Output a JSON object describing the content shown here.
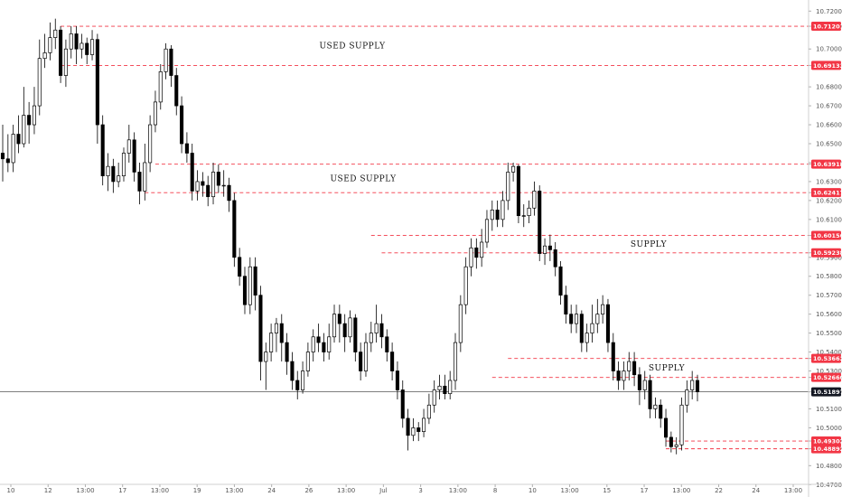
{
  "chart_data": {
    "type": "candlestick",
    "y_range": [
      10.473,
      10.723
    ],
    "y_ticks": [
      "10.72000",
      "10.71201",
      "10.70000",
      "10.69132",
      "10.68000",
      "10.67000",
      "10.66000",
      "10.65000",
      "10.64000",
      "10.63918",
      "10.63000",
      "10.62417",
      "10.62000",
      "10.61000",
      "10.60156",
      "10.59238",
      "10.59000",
      "10.58000",
      "10.57000",
      "10.56000",
      "10.55000",
      "10.54000",
      "10.53662",
      "10.53000",
      "10.52660",
      "10.51897",
      "10.51000",
      "10.50000",
      "10.49302",
      "10.48892",
      "10.48000",
      "10.47000"
    ],
    "x_ticks": [
      "10",
      "12",
      "13:00",
      "17",
      "13:00",
      "19",
      "13:00",
      "24",
      "26",
      "13:00",
      "Jul",
      "3",
      "13:00",
      "8",
      "10",
      "13:00",
      "15",
      "17",
      "13:00",
      "22",
      "24",
      "13:00"
    ],
    "levels": [
      {
        "value": 10.71201,
        "label": "10.71201"
      },
      {
        "value": 10.69132,
        "label": "10.69132"
      },
      {
        "value": 10.63918,
        "label": "10.63918"
      },
      {
        "value": 10.62417,
        "label": "10.62417"
      },
      {
        "value": 10.60156,
        "label": "10.60156"
      },
      {
        "value": 10.59238,
        "label": "10.59238"
      },
      {
        "value": 10.53662,
        "label": "10.53662"
      },
      {
        "value": 10.5266,
        "label": "10.52660"
      },
      {
        "value": 10.49302,
        "label": "10.49302"
      },
      {
        "value": 10.48892,
        "label": "10.48892"
      }
    ],
    "current_price": {
      "value": 10.51897,
      "label": "10.51897"
    },
    "zones": [
      {
        "label": "USED SUPPLY",
        "top": 10.71201,
        "bottom": 10.69132
      },
      {
        "label": "USED SUPPLY",
        "top": 10.63918,
        "bottom": 10.62417
      },
      {
        "label": "SUPPLY",
        "top": 10.60156,
        "bottom": 10.59238
      },
      {
        "label": "SUPPLY",
        "top": 10.53662,
        "bottom": 10.5266
      }
    ],
    "candles": [
      [
        10.645,
        10.642,
        10.66,
        10.63
      ],
      [
        10.642,
        10.64,
        10.655,
        10.635
      ],
      [
        10.64,
        10.655,
        10.66,
        10.635
      ],
      [
        10.655,
        10.65,
        10.665,
        10.645
      ],
      [
        10.65,
        10.665,
        10.68,
        10.648
      ],
      [
        10.665,
        10.66,
        10.672,
        10.65
      ],
      [
        10.66,
        10.67,
        10.68,
        10.655
      ],
      [
        10.67,
        10.695,
        10.705,
        10.665
      ],
      [
        10.695,
        10.698,
        10.708,
        10.69
      ],
      [
        10.698,
        10.706,
        10.714,
        10.694
      ],
      [
        10.706,
        10.71,
        10.716,
        10.7
      ],
      [
        10.71,
        10.686,
        10.712,
        10.682
      ],
      [
        10.686,
        10.7,
        10.705,
        10.68
      ],
      [
        10.7,
        10.708,
        10.712,
        10.695
      ],
      [
        10.708,
        10.7,
        10.712,
        10.692
      ],
      [
        10.7,
        10.703,
        10.708,
        10.695
      ],
      [
        10.703,
        10.697,
        10.706,
        10.692
      ],
      [
        10.697,
        10.705,
        10.71,
        10.694
      ],
      [
        10.705,
        10.66,
        10.708,
        10.65
      ],
      [
        10.66,
        10.633,
        10.665,
        10.628
      ],
      [
        10.633,
        10.638,
        10.645,
        10.625
      ],
      [
        10.638,
        10.63,
        10.642,
        10.624
      ],
      [
        10.63,
        10.633,
        10.64,
        10.627
      ],
      [
        10.633,
        10.645,
        10.648,
        10.63
      ],
      [
        10.645,
        10.652,
        10.66,
        10.64
      ],
      [
        10.652,
        10.635,
        10.656,
        10.63
      ],
      [
        10.635,
        10.625,
        10.64,
        10.618
      ],
      [
        10.625,
        10.64,
        10.65,
        10.62
      ],
      [
        10.64,
        10.66,
        10.665,
        10.635
      ],
      [
        10.66,
        10.672,
        10.678,
        10.656
      ],
      [
        10.672,
        10.688,
        10.692,
        10.668
      ],
      [
        10.688,
        10.7,
        10.703,
        10.684
      ],
      [
        10.7,
        10.686,
        10.702,
        10.68
      ],
      [
        10.686,
        10.67,
        10.69,
        10.665
      ],
      [
        10.67,
        10.65,
        10.675,
        10.645
      ],
      [
        10.65,
        10.645,
        10.656,
        10.64
      ],
      [
        10.645,
        10.625,
        10.65,
        10.62
      ],
      [
        10.625,
        10.63,
        10.636,
        10.62
      ],
      [
        10.63,
        10.628,
        10.635,
        10.622
      ],
      [
        10.628,
        10.622,
        10.633,
        10.617
      ],
      [
        10.622,
        10.635,
        10.64,
        10.618
      ],
      [
        10.635,
        10.628,
        10.639,
        10.624
      ],
      [
        10.628,
        10.628,
        10.636,
        10.622
      ],
      [
        10.628,
        10.62,
        10.632,
        10.614
      ],
      [
        10.62,
        10.59,
        10.624,
        10.585
      ],
      [
        10.59,
        10.58,
        10.595,
        10.575
      ],
      [
        10.58,
        10.565,
        10.585,
        10.56
      ],
      [
        10.565,
        10.585,
        10.59,
        10.56
      ],
      [
        10.585,
        10.57,
        10.59,
        10.562
      ],
      [
        10.57,
        10.535,
        10.575,
        10.525
      ],
      [
        10.535,
        10.54,
        10.545,
        10.52
      ],
      [
        10.54,
        10.55,
        10.555,
        10.535
      ],
      [
        10.55,
        10.555,
        10.558,
        10.54
      ],
      [
        10.555,
        10.545,
        10.56,
        10.535
      ],
      [
        10.545,
        10.535,
        10.55,
        10.528
      ],
      [
        10.535,
        10.525,
        10.54,
        10.52
      ],
      [
        10.525,
        10.52,
        10.53,
        10.515
      ],
      [
        10.52,
        10.53,
        10.535,
        10.518
      ],
      [
        10.53,
        10.54,
        10.545,
        10.527
      ],
      [
        10.54,
        10.548,
        10.552,
        10.535
      ],
      [
        10.548,
        10.545,
        10.555,
        10.54
      ],
      [
        10.545,
        10.54,
        10.55,
        10.535
      ],
      [
        10.54,
        10.548,
        10.555,
        10.536
      ],
      [
        10.548,
        10.56,
        10.565,
        10.545
      ],
      [
        10.56,
        10.555,
        10.565,
        10.545
      ],
      [
        10.555,
        10.548,
        10.56,
        10.54
      ],
      [
        10.548,
        10.558,
        10.562,
        10.545
      ],
      [
        10.558,
        10.54,
        10.56,
        10.535
      ],
      [
        10.54,
        10.53,
        10.545,
        10.525
      ],
      [
        10.53,
        10.545,
        10.55,
        10.527
      ],
      [
        10.545,
        10.55,
        10.556,
        10.54
      ],
      [
        10.55,
        10.555,
        10.565,
        10.545
      ],
      [
        10.555,
        10.548,
        10.56,
        10.542
      ],
      [
        10.548,
        10.54,
        10.552,
        10.535
      ],
      [
        10.54,
        10.53,
        10.545,
        10.525
      ],
      [
        10.53,
        10.52,
        10.535,
        10.515
      ],
      [
        10.52,
        10.505,
        10.525,
        10.5
      ],
      [
        10.505,
        10.496,
        10.51,
        10.488
      ],
      [
        10.496,
        10.5,
        10.505,
        10.493
      ],
      [
        10.5,
        10.498,
        10.503,
        10.493
      ],
      [
        10.498,
        10.505,
        10.51,
        10.495
      ],
      [
        10.505,
        10.512,
        10.518,
        10.502
      ],
      [
        10.512,
        10.52,
        10.525,
        10.508
      ],
      [
        10.52,
        10.522,
        10.528,
        10.515
      ],
      [
        10.522,
        10.518,
        10.528,
        10.515
      ],
      [
        10.518,
        10.525,
        10.53,
        10.515
      ],
      [
        10.525,
        10.545,
        10.55,
        10.52
      ],
      [
        10.545,
        10.565,
        10.57,
        10.54
      ],
      [
        10.565,
        10.585,
        10.59,
        10.56
      ],
      [
        10.585,
        10.595,
        10.6,
        10.58
      ],
      [
        10.595,
        10.59,
        10.6,
        10.584
      ],
      [
        10.59,
        10.598,
        10.605,
        10.585
      ],
      [
        10.598,
        10.61,
        10.615,
        10.595
      ],
      [
        10.61,
        10.615,
        10.62,
        10.604
      ],
      [
        10.615,
        10.61,
        10.62,
        10.606
      ],
      [
        10.61,
        10.62,
        10.625,
        10.606
      ],
      [
        10.62,
        10.635,
        10.64,
        10.615
      ],
      [
        10.635,
        10.638,
        10.64,
        10.63
      ],
      [
        10.638,
        10.612,
        10.639,
        10.608
      ],
      [
        10.612,
        10.612,
        10.618,
        10.606
      ],
      [
        10.612,
        10.616,
        10.62,
        10.608
      ],
      [
        10.616,
        10.625,
        10.63,
        10.612
      ],
      [
        10.625,
        10.592,
        10.628,
        10.588
      ],
      [
        10.592,
        10.596,
        10.6,
        10.586
      ],
      [
        10.596,
        10.594,
        10.602,
        10.588
      ],
      [
        10.594,
        10.585,
        10.598,
        10.58
      ],
      [
        10.585,
        10.57,
        10.588,
        10.565
      ],
      [
        10.57,
        10.56,
        10.575,
        10.555
      ],
      [
        10.56,
        10.555,
        10.565,
        10.55
      ],
      [
        10.555,
        10.56,
        10.565,
        10.55
      ],
      [
        10.56,
        10.545,
        10.562,
        10.54
      ],
      [
        10.545,
        10.55,
        10.555,
        10.54
      ],
      [
        10.55,
        10.555,
        10.565,
        10.545
      ],
      [
        10.555,
        10.56,
        10.568,
        10.55
      ],
      [
        10.56,
        10.565,
        10.57,
        10.555
      ],
      [
        10.565,
        10.545,
        10.568,
        10.54
      ],
      [
        10.545,
        10.53,
        10.55,
        10.525
      ],
      [
        10.53,
        10.525,
        10.535,
        10.52
      ],
      [
        10.525,
        10.53,
        10.535,
        10.52
      ],
      [
        10.53,
        10.535,
        10.54,
        10.525
      ],
      [
        10.535,
        10.528,
        10.54,
        10.522
      ],
      [
        10.528,
        10.52,
        10.532,
        10.512
      ],
      [
        10.52,
        10.525,
        10.53,
        10.515
      ],
      [
        10.525,
        10.51,
        10.528,
        10.505
      ],
      [
        10.51,
        10.512,
        10.516,
        10.505
      ],
      [
        10.512,
        10.505,
        10.515,
        10.5
      ],
      [
        10.505,
        10.495,
        10.51,
        10.49
      ],
      [
        10.495,
        10.49,
        10.498,
        10.487
      ],
      [
        10.49,
        10.491,
        10.495,
        10.486
      ],
      [
        10.491,
        10.512,
        10.516,
        10.488
      ],
      [
        10.512,
        10.52,
        10.525,
        10.508
      ],
      [
        10.52,
        10.525,
        10.53,
        10.515
      ],
      [
        10.525,
        10.519,
        10.528,
        10.514
      ]
    ]
  }
}
